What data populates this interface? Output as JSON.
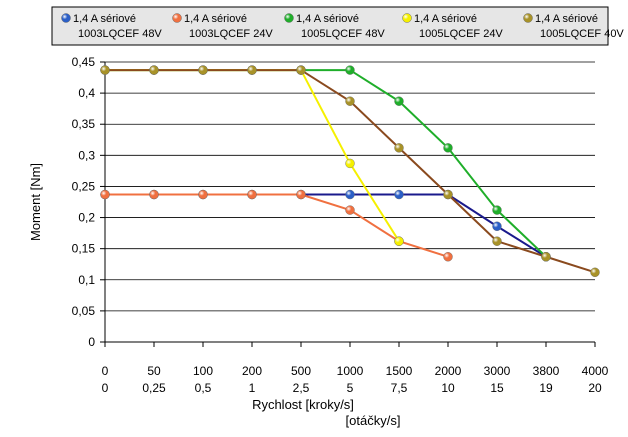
{
  "chart_data": {
    "type": "line",
    "xlabel": "Rychlost [kroky/s]",
    "xlabel2": "[otáčky/s]",
    "ylabel": "Moment [Nm]",
    "ylim": [
      0,
      0.45
    ],
    "yticks": [
      "0",
      "0,05",
      "0,1",
      "0,15",
      "0,2",
      "0,25",
      "0,3",
      "0,35",
      "0,4",
      "0,45"
    ],
    "ytick_values": [
      0,
      0.05,
      0.1,
      0.15,
      0.2,
      0.25,
      0.3,
      0.35,
      0.4,
      0.45
    ],
    "categories": [
      "0",
      "50",
      "100",
      "200",
      "500",
      "1000",
      "1500",
      "2000",
      "3000",
      "3800",
      "4000"
    ],
    "categories2": [
      "0",
      "0,25",
      "0,5",
      "1",
      "2,5",
      "5",
      "7,5",
      "10",
      "15",
      "19",
      "20"
    ],
    "grid": true,
    "legend_position": "top",
    "series": [
      {
        "name_line1": "1,4 A sériové",
        "name_line2": "1003LQCEF 48V",
        "line_color": "#1a1a8c",
        "marker_color": "#2b5fc7",
        "values": [
          0.237,
          0.237,
          0.237,
          0.237,
          0.237,
          0.237,
          0.237,
          0.237,
          0.186,
          0.137,
          null
        ]
      },
      {
        "name_line1": "1,4 A sériové",
        "name_line2": "1003LQCEF 24V",
        "line_color": "#f07040",
        "marker_color": "#f07040",
        "values": [
          0.237,
          0.237,
          0.237,
          0.237,
          0.237,
          0.212,
          0.162,
          0.137,
          null,
          null,
          null
        ]
      },
      {
        "name_line1": "1,4 A sériové",
        "name_line2": "1005LQCEF 48V",
        "line_color": "#1fae2a",
        "marker_color": "#1fae2a",
        "values": [
          0.437,
          0.437,
          0.437,
          0.437,
          0.437,
          0.437,
          0.387,
          0.312,
          0.212,
          0.137,
          null
        ]
      },
      {
        "name_line1": "1,4 A sériové",
        "name_line2": "1005LQCEF 24V",
        "line_color": "#f5f000",
        "marker_color": "#f5f000",
        "values": [
          0.437,
          0.437,
          0.437,
          0.437,
          0.437,
          0.287,
          0.162,
          null,
          null,
          null,
          null
        ]
      },
      {
        "name_line1": "1,4 A sériové",
        "name_line2": "1005LQCEF 40V",
        "line_color": "#8a4a1e",
        "marker_color": "#a89228",
        "values": [
          0.437,
          0.437,
          0.437,
          0.437,
          0.437,
          0.387,
          0.312,
          0.237,
          0.162,
          0.137,
          0.112
        ]
      }
    ]
  }
}
